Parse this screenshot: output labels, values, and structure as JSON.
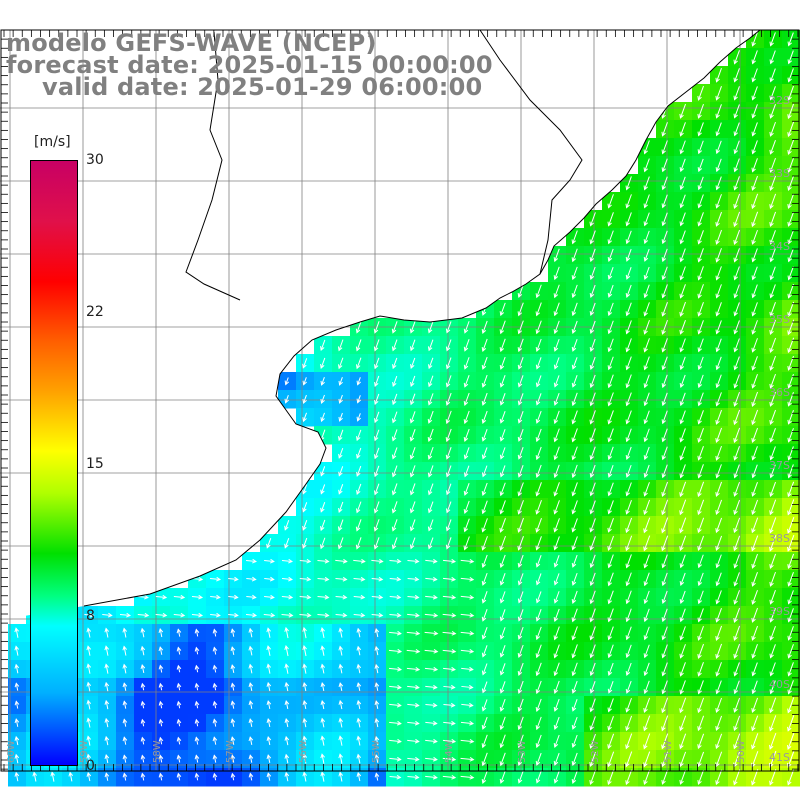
{
  "title": {
    "line1": "modelo GEFS-WAVE (NCEP)",
    "line2": "forecast date: 2025-01-15 00:00:00",
    "line3": "valid date: 2025-01-29 06:00:00"
  },
  "colorbar": {
    "unit": "[m/s]",
    "ticks": [
      "30",
      "22",
      "15",
      "8",
      "0"
    ],
    "range": [
      0,
      30
    ],
    "colors": [
      "#0000ff",
      "#00b0ff",
      "#00ffff",
      "#00ff80",
      "#00e000",
      "#b0ff00",
      "#ffff00",
      "#ffa000",
      "#ff6000",
      "#ff0000",
      "#c80064"
    ]
  },
  "map": {
    "lat_labels": [
      "32S",
      "33S",
      "34S",
      "35S",
      "36S",
      "37S",
      "38S",
      "39S",
      "40S",
      "41S"
    ],
    "lon_labels": [
      "60W",
      "59W",
      "58W",
      "57W",
      "56W",
      "55W",
      "54W",
      "53W",
      "52W",
      "51W",
      "50W"
    ],
    "land_color": "#ffffff",
    "grid_color": "#808080",
    "arrow_color": "#ffffff"
  }
}
